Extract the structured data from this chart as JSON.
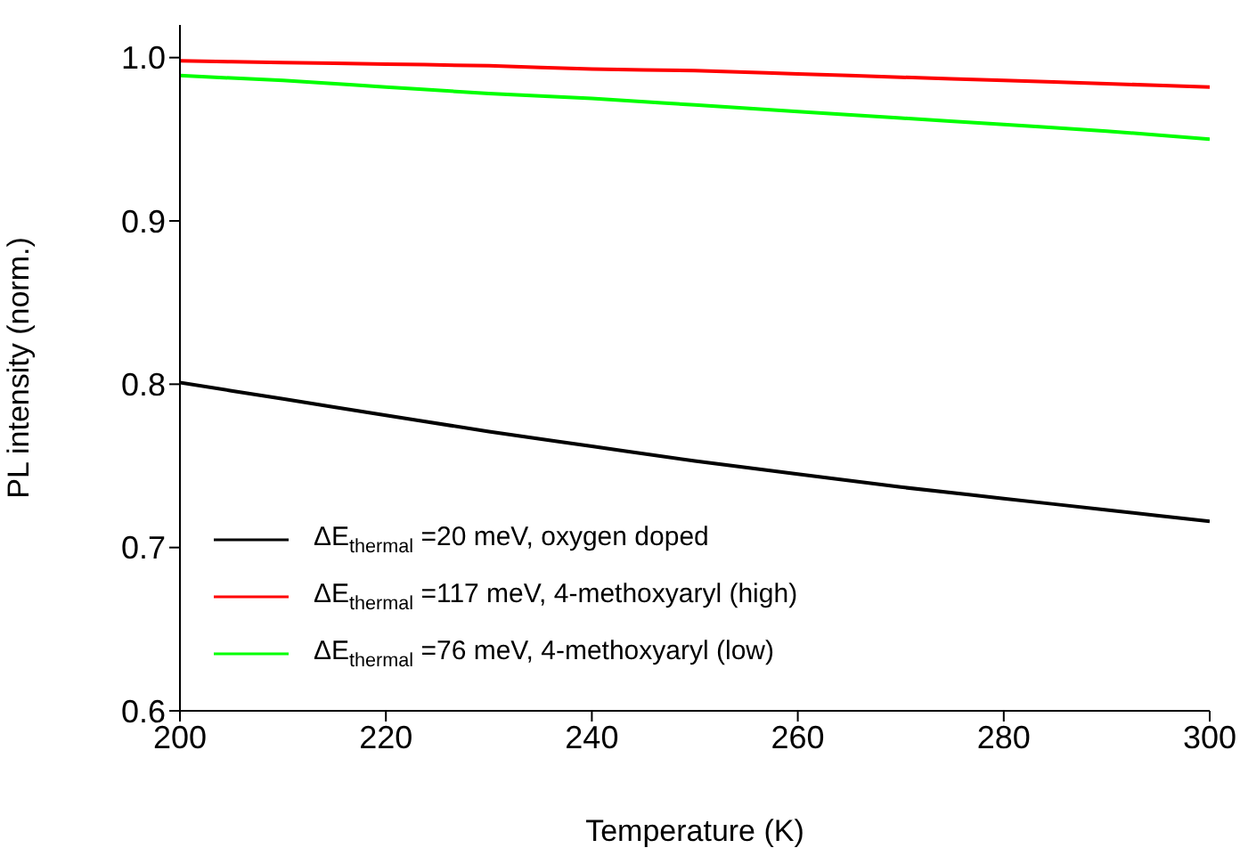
{
  "chart_data": {
    "type": "line",
    "xlabel": "Temperature (K)",
    "ylabel": "PL intensity (norm.)",
    "xlim": [
      200,
      300
    ],
    "xticks": [
      200,
      220,
      240,
      260,
      280,
      300
    ],
    "ylim": [
      0.6,
      1.02
    ],
    "yticks": [
      0.6,
      0.7,
      0.8,
      0.9,
      {
        "value": 1,
        "label": "1.0"
      }
    ],
    "x": [
      200,
      210,
      220,
      230,
      240,
      250,
      260,
      270,
      280,
      290,
      300
    ],
    "series": [
      {
        "name": "ΔE$_{thermal}$ =20 meV, oxygen doped",
        "color": "#000000",
        "values": [
          0.801,
          0.791,
          0.781,
          0.771,
          0.762,
          0.753,
          0.745,
          0.737,
          0.73,
          0.723,
          0.716
        ]
      },
      {
        "name": "ΔE$_{thermal}$ =117 meV, 4-methoxyaryl (high)",
        "color": "#ff0000",
        "values": [
          0.998,
          0.997,
          0.996,
          0.995,
          0.993,
          0.992,
          0.99,
          0.988,
          0.986,
          0.984,
          0.982
        ]
      },
      {
        "name": "ΔE$_{thermal}$ =76 meV, 4-methoxyaryl (low)",
        "color": "#00ff00",
        "values": [
          0.989,
          0.986,
          0.982,
          0.978,
          0.975,
          0.971,
          0.967,
          0.963,
          0.959,
          0.955,
          0.95
        ]
      }
    ],
    "legend": "bottom left",
    "grid": false,
    "marker": "none",
    "line_style": "solid"
  }
}
